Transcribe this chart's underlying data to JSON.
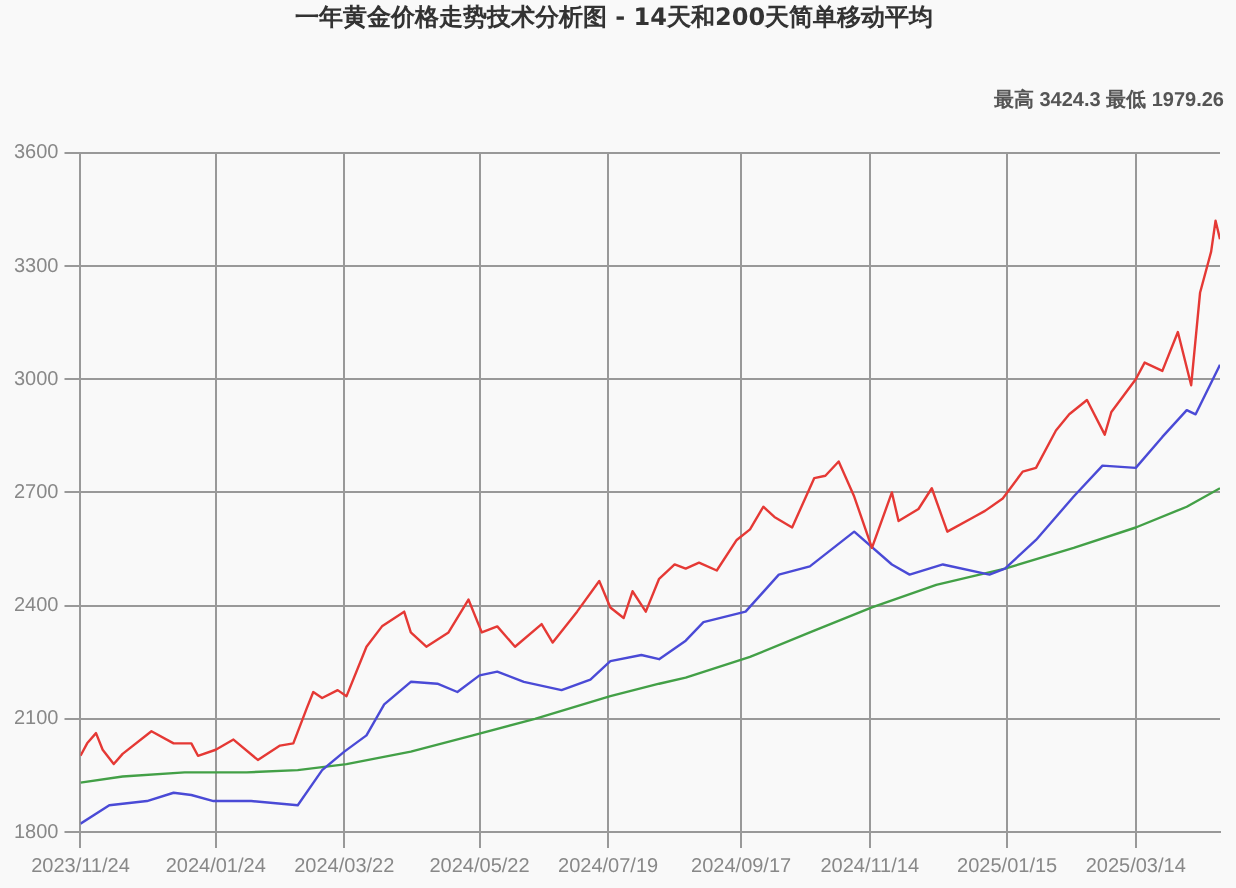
{
  "chart_data": {
    "type": "line",
    "title": "一年黄金价格走势技术分析图 - 14天和200天简单移动平均",
    "annotations": [
      "最高 3424.3 最低 1979.26"
    ],
    "xlim": [
      "2023-11-24",
      "2025-04-21"
    ],
    "xticks": [
      {
        "value": "2023-11-24",
        "label": "2023/11/24"
      },
      {
        "value": "2024-01-24",
        "label": "2024/01/24"
      },
      {
        "value": "2024-03-22",
        "label": "2024/03/22"
      },
      {
        "value": "2024-05-22",
        "label": "2024/05/22"
      },
      {
        "value": "2024-07-19",
        "label": "2024/07/19"
      },
      {
        "value": "2024-09-17",
        "label": "2024/09/17"
      },
      {
        "value": "2024-11-14",
        "label": "2024/11/14"
      },
      {
        "value": "2025-01-15",
        "label": "2025/01/15"
      },
      {
        "value": "2025-03-14",
        "label": "2025/03/14"
      }
    ],
    "ylim": [
      1800,
      3600
    ],
    "yticks": [
      1800,
      2100,
      2400,
      2700,
      3000,
      3300,
      3600
    ],
    "grid": true,
    "legend": false,
    "marker": "none",
    "line_style": "solid",
    "series": [
      {
        "color": "#e53935",
        "x": [
          "2023-11-24",
          "2023-11-27",
          "2023-12-01",
          "2023-12-04",
          "2023-12-09",
          "2023-12-13",
          "2023-12-26",
          "2024-01-05",
          "2024-01-13",
          "2024-01-16",
          "2024-01-24",
          "2024-02-01",
          "2024-02-12",
          "2024-02-22",
          "2024-02-28",
          "2024-03-05",
          "2024-03-08",
          "2024-03-12",
          "2024-03-19",
          "2024-03-23",
          "2024-04-01",
          "2024-04-08",
          "2024-04-18",
          "2024-04-21",
          "2024-04-28",
          "2024-05-08",
          "2024-05-17",
          "2024-05-23",
          "2024-05-30",
          "2024-06-07",
          "2024-06-19",
          "2024-06-24",
          "2024-07-05",
          "2024-07-15",
          "2024-07-20",
          "2024-07-26",
          "2024-07-30",
          "2024-08-05",
          "2024-08-11",
          "2024-08-18",
          "2024-08-23",
          "2024-08-29",
          "2024-09-06",
          "2024-09-15",
          "2024-09-21",
          "2024-09-27",
          "2024-10-02",
          "2024-10-10",
          "2024-10-20",
          "2024-10-25",
          "2024-10-31",
          "2024-11-07",
          "2024-11-15",
          "2024-11-24",
          "2024-11-27",
          "2024-12-06",
          "2024-12-12",
          "2024-12-19",
          "2024-12-31",
          "2025-01-05",
          "2025-01-13",
          "2025-01-22",
          "2025-01-28",
          "2025-02-06",
          "2025-02-12",
          "2025-02-20",
          "2025-02-28",
          "2025-03-03",
          "2025-03-14",
          "2025-03-18",
          "2025-03-26",
          "2025-04-02",
          "2025-04-08",
          "2025-04-12",
          "2025-04-17",
          "2025-04-19",
          "2025-04-21"
        ],
        "values": [
          2002,
          2035,
          2062,
          2018,
          1980,
          2007,
          2067,
          2035,
          2035,
          2002,
          2018,
          2045,
          1991,
          2029,
          2035,
          2127,
          2171,
          2155,
          2176,
          2160,
          2291,
          2345,
          2384,
          2329,
          2291,
          2329,
          2416,
          2329,
          2345,
          2291,
          2351,
          2302,
          2384,
          2465,
          2395,
          2367,
          2438,
          2384,
          2471,
          2509,
          2498,
          2514,
          2493,
          2574,
          2602,
          2662,
          2635,
          2607,
          2738,
          2744,
          2782,
          2689,
          2553,
          2700,
          2624,
          2656,
          2711,
          2596,
          2635,
          2651,
          2684,
          2755,
          2765,
          2864,
          2907,
          2945,
          2853,
          2913,
          3000,
          3044,
          3022,
          3125,
          2984,
          3229,
          3338,
          3420,
          3371
        ]
      },
      {
        "color": "#4a4ad6",
        "x": [
          "2023-11-24",
          "2023-12-07",
          "2023-12-24",
          "2024-01-05",
          "2024-01-13",
          "2024-01-23",
          "2024-02-09",
          "2024-03-01",
          "2024-03-12",
          "2024-03-22",
          "2024-04-01",
          "2024-04-09",
          "2024-04-21",
          "2024-05-03",
          "2024-05-12",
          "2024-05-22",
          "2024-05-30",
          "2024-06-11",
          "2024-06-28",
          "2024-07-11",
          "2024-07-20",
          "2024-08-03",
          "2024-08-11",
          "2024-08-23",
          "2024-08-31",
          "2024-09-19",
          "2024-10-04",
          "2024-10-18",
          "2024-11-07",
          "2024-11-24",
          "2024-12-02",
          "2024-12-17",
          "2025-01-07",
          "2025-01-14",
          "2025-01-28",
          "2025-02-14",
          "2025-02-27",
          "2025-03-14",
          "2025-03-26",
          "2025-04-06",
          "2025-04-10",
          "2025-04-21"
        ],
        "values": [
          1822,
          1871,
          1882,
          1904,
          1898,
          1882,
          1882,
          1871,
          1964,
          2013,
          2056,
          2138,
          2198,
          2193,
          2171,
          2215,
          2225,
          2198,
          2176,
          2204,
          2253,
          2269,
          2258,
          2307,
          2356,
          2384,
          2482,
          2504,
          2596,
          2509,
          2482,
          2509,
          2482,
          2498,
          2574,
          2689,
          2771,
          2765,
          2847,
          2918,
          2907,
          3038
        ]
      },
      {
        "color": "#43a047",
        "x": [
          "2023-11-24",
          "2023-12-13",
          "2024-01-10",
          "2024-02-07",
          "2024-03-01",
          "2024-03-23",
          "2024-04-21",
          "2024-05-19",
          "2024-06-16",
          "2024-07-20",
          "2024-08-11",
          "2024-08-23",
          "2024-09-21",
          "2024-10-18",
          "2024-11-15",
          "2024-12-14",
          "2025-01-14",
          "2025-02-14",
          "2025-03-14",
          "2025-04-06",
          "2025-04-21"
        ],
        "values": [
          1931,
          1947,
          1958,
          1958,
          1964,
          1980,
          2013,
          2056,
          2100,
          2160,
          2193,
          2209,
          2264,
          2329,
          2395,
          2455,
          2498,
          2553,
          2607,
          2662,
          2711
        ]
      }
    ]
  }
}
